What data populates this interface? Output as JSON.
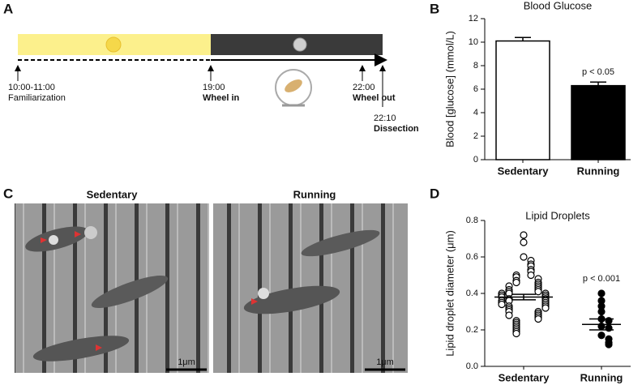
{
  "panels": [
    "A",
    "B",
    "C",
    "D"
  ],
  "timeline": {
    "labels": [
      {
        "time": "10:00-11:00",
        "event": "Familiarization"
      },
      {
        "time": "19:00",
        "event": "Wheel in"
      },
      {
        "time": "22:00",
        "event": "Wheel out"
      },
      {
        "time": "22:10",
        "event": "Dissection"
      }
    ]
  },
  "micrographs": {
    "titles": [
      "Sedentary",
      "Running"
    ],
    "scale_bar": "1μm"
  },
  "chart_data": [
    {
      "type": "bar",
      "title": "Blood Glucose",
      "ylabel": "Blood [glucose] (mmol/L)",
      "categories": [
        "Sedentary",
        "Running"
      ],
      "values": [
        10.1,
        6.3
      ],
      "errors": [
        0.3,
        0.3
      ],
      "colors": [
        "#ffffff",
        "#000000"
      ],
      "ylim": [
        0,
        12
      ],
      "yticks": [
        0,
        2,
        4,
        6,
        8,
        10,
        12
      ],
      "annotation": "p < 0.05"
    },
    {
      "type": "dot",
      "title": "Lipid Droplets",
      "ylabel": "Lipid droplet diameter (μm)",
      "categories": [
        "Sedentary",
        "Running"
      ],
      "values": [
        [
          0.72,
          0.68,
          0.6,
          0.58,
          0.56,
          0.55,
          0.53,
          0.52,
          0.5,
          0.5,
          0.49,
          0.48,
          0.47,
          0.46,
          0.46,
          0.45,
          0.44,
          0.44,
          0.43,
          0.42,
          0.42,
          0.41,
          0.41,
          0.4,
          0.4,
          0.4,
          0.39,
          0.39,
          0.38,
          0.38,
          0.37,
          0.37,
          0.36,
          0.36,
          0.36,
          0.35,
          0.35,
          0.34,
          0.34,
          0.33,
          0.33,
          0.32,
          0.32,
          0.31,
          0.3,
          0.3,
          0.29,
          0.28,
          0.28,
          0.27,
          0.26,
          0.25,
          0.24,
          0.23,
          0.22,
          0.21,
          0.2,
          0.19,
          0.18
        ],
        [
          0.4,
          0.36,
          0.33,
          0.3,
          0.26,
          0.25,
          0.22,
          0.21,
          0.17,
          0.15,
          0.13,
          0.12
        ]
      ],
      "markers": [
        "open",
        "filled"
      ],
      "means": [
        0.38,
        0.23
      ],
      "errors": [
        0.015,
        0.03
      ],
      "ylim": [
        0,
        0.8
      ],
      "yticks": [
        {
          "value": 0,
          "label": "0.0"
        },
        0.2,
        0.4,
        0.6,
        0.8
      ],
      "annotation": "p < 0.001"
    }
  ]
}
